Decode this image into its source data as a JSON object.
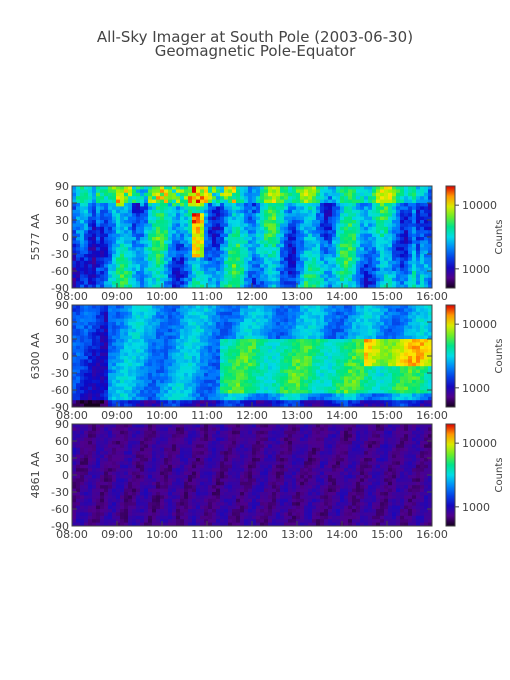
{
  "title": "All-Sky Imager at South Pole (2003-06-30)",
  "subtitle": "Geomagnetic Pole-Equator",
  "chart_data": [
    {
      "type": "heatmap",
      "ylabel": "5577 AA",
      "x_ticks": [
        "08:00",
        "09:00",
        "10:00",
        "11:00",
        "12:00",
        "13:00",
        "14:00",
        "15:00",
        "16:00"
      ],
      "y_ticks": [
        90,
        60,
        30,
        0,
        -30,
        -60,
        -90
      ],
      "xlim": [
        "08:00",
        "16:00"
      ],
      "ylim": [
        -90,
        90
      ],
      "colorbar": {
        "label": "Counts",
        "ticks": [
          10000,
          1000
        ],
        "tick_labels": [
          "10000",
          "1000"
        ],
        "scale": "log"
      },
      "profile": "strong_green_red_band"
    },
    {
      "type": "heatmap",
      "ylabel": "6300 AA",
      "x_ticks": [
        "08:00",
        "09:00",
        "10:00",
        "11:00",
        "12:00",
        "13:00",
        "14:00",
        "15:00",
        "16:00"
      ],
      "y_ticks": [
        90,
        60,
        30,
        0,
        -30,
        -60,
        -90
      ],
      "xlim": [
        "08:00",
        "16:00"
      ],
      "ylim": [
        -90,
        90
      ],
      "colorbar": {
        "label": "Counts",
        "ticks": [
          10000,
          1000
        ],
        "tick_labels": [
          "10000",
          "1000"
        ],
        "scale": "log"
      },
      "profile": "broad_cyan_green"
    },
    {
      "type": "heatmap",
      "ylabel": "4861 AA",
      "x_ticks": [
        "08:00",
        "09:00",
        "10:00",
        "11:00",
        "12:00",
        "13:00",
        "14:00",
        "15:00",
        "16:00"
      ],
      "y_ticks": [
        90,
        60,
        30,
        0,
        -30,
        -60,
        -90
      ],
      "xlim": [
        "08:00",
        "16:00"
      ],
      "ylim": [
        -90,
        90
      ],
      "colorbar": {
        "label": "Counts",
        "ticks": [
          10000,
          1000
        ],
        "tick_labels": [
          "10000",
          "1000"
        ],
        "scale": "log"
      },
      "profile": "faint_purple"
    }
  ]
}
